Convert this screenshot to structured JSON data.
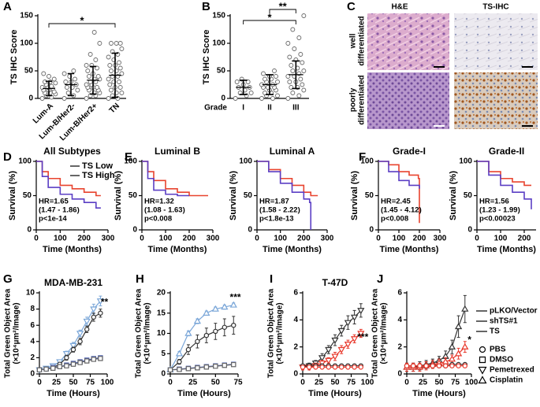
{
  "chart_data": [
    {
      "type": "dotplot",
      "panel": "A",
      "ylabel": "TS IHC Score",
      "categories": [
        "Lum-A",
        "Lum-B/Her2-",
        "Lum-B/Her2+",
        "TN"
      ],
      "points": [
        [
          0,
          2,
          5,
          8,
          10,
          10,
          12,
          15,
          15,
          18,
          20,
          20,
          22,
          25,
          28,
          30,
          30,
          35,
          40,
          45
        ],
        [
          0,
          5,
          10,
          15,
          20,
          20,
          25,
          30,
          30,
          35,
          40,
          45,
          50
        ],
        [
          0,
          5,
          5,
          10,
          10,
          15,
          15,
          20,
          20,
          20,
          25,
          25,
          30,
          30,
          35,
          35,
          40,
          40,
          45,
          50,
          55,
          60,
          60,
          70,
          80,
          100,
          120
        ],
        [
          0,
          0,
          5,
          10,
          10,
          15,
          20,
          20,
          25,
          30,
          30,
          35,
          40,
          40,
          45,
          50,
          50,
          55,
          60,
          60,
          65,
          70,
          75,
          80,
          85,
          90,
          100,
          100,
          100
        ]
      ],
      "mean": [
        18,
        25,
        33,
        42
      ],
      "sd": [
        13,
        20,
        25,
        40
      ],
      "annotations": [
        "*"
      ],
      "ylim": [
        0,
        150
      ],
      "yticks": [
        0,
        50,
        100,
        150
      ]
    },
    {
      "type": "dotplot",
      "panel": "B",
      "ylabel": "TS IHC Score",
      "xlabel": "Grade",
      "categories": [
        "I",
        "II",
        "III"
      ],
      "points": [
        [
          0,
          5,
          10,
          10,
          15,
          20,
          20,
          25,
          30,
          30,
          35
        ],
        [
          0,
          0,
          5,
          5,
          10,
          10,
          15,
          15,
          20,
          20,
          20,
          25,
          25,
          30,
          30,
          35,
          35,
          40,
          40,
          45,
          50
        ],
        [
          0,
          5,
          10,
          15,
          20,
          20,
          25,
          30,
          30,
          35,
          40,
          40,
          45,
          50,
          50,
          55,
          60,
          65,
          70,
          75,
          80,
          90,
          100,
          110,
          125,
          150
        ]
      ],
      "mean": [
        20,
        25,
        43
      ],
      "sd": [
        13,
        18,
        25
      ],
      "annotations": [
        "*",
        "**"
      ],
      "ylim": [
        0,
        150
      ],
      "yticks": [
        0,
        50,
        100,
        150
      ]
    },
    {
      "type": "survival",
      "panel": "D",
      "title": "All Subtypes",
      "ylabel": "Survival (%)",
      "xlabel": "Time (Months)",
      "series": [
        {
          "name": "TS Low",
          "color": "#e8432e",
          "x": [
            0,
            25,
            50,
            100,
            150,
            200,
            250,
            270
          ],
          "values": [
            100,
            85,
            75,
            65,
            60,
            55,
            50,
            50
          ]
        },
        {
          "name": "TS High",
          "color": "#5b3fc4",
          "x": [
            0,
            25,
            50,
            100,
            150,
            200,
            250,
            270
          ],
          "values": [
            100,
            78,
            62,
            52,
            45,
            40,
            32,
            32
          ]
        }
      ],
      "stats": [
        "HR=1.65",
        "(1.47 - 1.86)",
        "p<1e-14"
      ],
      "xlim": [
        0,
        300
      ],
      "xticks": [
        0,
        100,
        200,
        300
      ],
      "ylim": [
        0,
        100
      ],
      "yticks": [
        0,
        50,
        100
      ]
    },
    {
      "type": "survival",
      "panel": "E",
      "title": "Luminal B",
      "ylabel": "Survival (%)",
      "xlabel": "Time (Months)",
      "series": [
        {
          "color": "#e8432e",
          "x": [
            0,
            25,
            50,
            100,
            150,
            200,
            280
          ],
          "values": [
            100,
            85,
            72,
            60,
            55,
            50,
            50
          ]
        },
        {
          "color": "#5b3fc4",
          "x": [
            0,
            25,
            50,
            100,
            150,
            200
          ],
          "values": [
            100,
            75,
            58,
            52,
            50,
            50
          ]
        }
      ],
      "stats": [
        "HR=1.32",
        "(1.08 - 1.63)",
        "p<0.008"
      ],
      "xlim": [
        0,
        300
      ],
      "xticks": [
        0,
        100,
        200,
        300
      ],
      "ylim": [
        0,
        100
      ],
      "yticks": [
        0,
        50,
        100
      ]
    },
    {
      "type": "survival",
      "title": "Luminal A",
      "ylabel": "Survival (%)",
      "xlabel": "Time (Months)",
      "series": [
        {
          "color": "#e8432e",
          "x": [
            0,
            50,
            100,
            150,
            200,
            230,
            260
          ],
          "values": [
            100,
            88,
            75,
            65,
            55,
            50,
            50
          ]
        },
        {
          "color": "#5b3fc4",
          "x": [
            0,
            50,
            100,
            150,
            200,
            225,
            230
          ],
          "values": [
            100,
            85,
            68,
            55,
            45,
            40,
            0
          ]
        }
      ],
      "stats": [
        "HR=1.87",
        "(1.58 - 2.22)",
        "p<1.8e-13"
      ],
      "xlim": [
        0,
        300
      ],
      "xticks": [
        0,
        100,
        200,
        300
      ],
      "ylim": [
        0,
        100
      ],
      "yticks": [
        0,
        50,
        100
      ]
    },
    {
      "type": "survival",
      "panel": "F",
      "title": "Grade-I",
      "ylabel": "Survival (%)",
      "xlabel": "Time (Months)",
      "series": [
        {
          "color": "#e8432e",
          "x": [
            0,
            50,
            100,
            150,
            195,
            200
          ],
          "values": [
            100,
            95,
            85,
            80,
            75,
            10
          ]
        },
        {
          "color": "#5b3fc4",
          "x": [
            0,
            50,
            100,
            150,
            200
          ],
          "values": [
            100,
            85,
            72,
            65,
            60
          ]
        }
      ],
      "stats": [
        "HR=2.45",
        "(1.45 - 4.12)",
        "p<0.008"
      ],
      "xlim": [
        0,
        300
      ],
      "xticks": [
        0,
        100,
        200,
        300
      ],
      "ylim": [
        0,
        100
      ],
      "yticks": [
        0,
        50,
        100
      ]
    },
    {
      "type": "survival",
      "title": "Grade-II",
      "ylabel": "Survival (%)",
      "xlabel": "Time (Months)",
      "series": [
        {
          "color": "#e8432e",
          "x": [
            0,
            50,
            100,
            150,
            200,
            230
          ],
          "values": [
            100,
            85,
            75,
            70,
            65,
            65
          ]
        },
        {
          "color": "#5b3fc4",
          "x": [
            0,
            50,
            100,
            150,
            200,
            230
          ],
          "values": [
            100,
            80,
            65,
            55,
            45,
            30
          ]
        }
      ],
      "stats": [
        "HR=1.56",
        "(1.23 - 1.99)",
        "p<0.00023"
      ],
      "xlim": [
        0,
        250
      ],
      "xticks": [
        0,
        100,
        200
      ],
      "ylim": [
        0,
        100
      ],
      "yticks": [
        0,
        50,
        100
      ]
    },
    {
      "type": "growth",
      "panel": "G",
      "title": "MDA-MB-231",
      "ylabel": [
        "Total Green Object Area",
        "(×10⁴µm²/Image)"
      ],
      "xlabel": "Time (Hours)",
      "x": [
        0,
        10,
        20,
        30,
        40,
        50,
        60,
        70,
        80,
        90
      ],
      "series": [
        {
          "color": "#7aa6d8",
          "marker": "triangle-down",
          "values": [
            0.5,
            0.7,
            1,
            1.5,
            2.5,
            3.5,
            5,
            6.5,
            8,
            9
          ],
          "errors": [
            0.1,
            0.1,
            0.2,
            0.2,
            0.3,
            0.4,
            0.4,
            0.5,
            0.6,
            0.6
          ]
        },
        {
          "color": "#333333",
          "marker": "circle",
          "values": [
            0.5,
            0.6,
            0.8,
            1.2,
            2,
            3,
            4,
            5.5,
            7,
            7.5
          ],
          "errors": [
            0.1,
            0.1,
            0.1,
            0.2,
            0.3,
            0.3,
            0.4,
            0.4,
            0.5,
            0.5
          ]
        },
        {
          "color": "#4a5fb0",
          "marker": "square",
          "values": [
            0.5,
            0.6,
            0.8,
            0.9,
            1.1,
            1.3,
            1.5,
            1.7,
            1.9,
            2
          ]
        },
        {
          "color": "#666666",
          "marker": "square",
          "values": [
            0.5,
            0.6,
            0.7,
            0.9,
            1,
            1.2,
            1.4,
            1.6,
            1.8,
            1.9
          ]
        }
      ],
      "annotations": [
        "**"
      ],
      "xlim": [
        0,
        100
      ],
      "xticks": [
        0,
        25,
        50,
        75,
        100
      ],
      "ylim": [
        0,
        10
      ],
      "yticks": [
        0,
        2,
        4,
        6,
        8,
        10
      ]
    },
    {
      "type": "growth",
      "panel": "H",
      "ylabel": [
        "Total Green Object Area",
        "(×10⁴µm²/Image)"
      ],
      "xlabel": "Time (Hours)",
      "x": [
        0,
        10,
        20,
        30,
        40,
        50,
        60,
        70
      ],
      "series": [
        {
          "color": "#7aa6d8",
          "marker": "triangle-up",
          "values": [
            1,
            5,
            10,
            13,
            15,
            16,
            16.5,
            17
          ],
          "errors": [
            0.2,
            0.5,
            0.6,
            0.6,
            0.5,
            0.5,
            0.5,
            0.5
          ]
        },
        {
          "color": "#333333",
          "marker": "circle",
          "values": [
            1,
            3,
            6,
            8,
            9.5,
            10.5,
            11.5,
            12
          ],
          "errors": [
            0.2,
            0.6,
            1.2,
            1.6,
            1.8,
            2,
            2.1,
            2.2
          ]
        },
        {
          "color": "#4a5fb0",
          "marker": "square",
          "values": [
            1,
            1.2,
            1.4,
            1.6,
            1.8,
            2,
            2.2,
            2.4
          ]
        },
        {
          "color": "#666666",
          "marker": "square",
          "values": [
            1,
            1.1,
            1.3,
            1.5,
            1.7,
            1.9,
            2.1,
            2.3
          ]
        }
      ],
      "annotations": [
        "***"
      ],
      "xlim": [
        0,
        75
      ],
      "xticks": [
        0,
        25,
        50,
        75
      ],
      "ylim": [
        0,
        20
      ],
      "yticks": [
        0,
        5,
        10,
        15,
        20
      ]
    },
    {
      "type": "growth",
      "panel": "I",
      "title": "T-47D",
      "ylabel": [
        "Total Green Object Area",
        "(×10⁴µm²/Image)"
      ],
      "xlabel": "Time (Hours)",
      "x": [
        0,
        10,
        20,
        30,
        40,
        50,
        60,
        70,
        80,
        90
      ],
      "series": [
        {
          "color": "#333333",
          "marker": "triangle-down",
          "values": [
            0.5,
            0.6,
            0.8,
            1.2,
            1.8,
            2.5,
            3.2,
            3.8,
            4.2,
            4.7
          ],
          "errors": [
            0.2,
            0.2,
            0.2,
            0.3,
            0.3,
            0.4,
            0.4,
            0.5,
            0.5,
            0.5
          ]
        },
        {
          "color": "#e8382b",
          "marker": "triangle-down",
          "values": [
            0.5,
            0.5,
            0.6,
            0.8,
            1,
            1.3,
            1.8,
            2.2,
            2.6,
            3
          ],
          "errors": [
            0.2,
            0.2,
            0.2,
            0.2,
            0.2,
            0.3,
            0.3,
            0.3,
            0.3,
            0.3
          ]
        },
        {
          "color": "#333333",
          "marker": "circle",
          "values": [
            0.6,
            0.6,
            0.6,
            0.6,
            0.6,
            0.6,
            0.6,
            0.6,
            0.6,
            0.6
          ]
        },
        {
          "color": "#e8382b",
          "marker": "circle",
          "values": [
            0.5,
            0.5,
            0.5,
            0.5,
            0.5,
            0.5,
            0.5,
            0.5,
            0.5,
            0.5
          ]
        }
      ],
      "annotations": [
        "***"
      ],
      "xlim": [
        0,
        100
      ],
      "xticks": [
        0,
        25,
        50,
        75,
        100
      ],
      "ylim": [
        0,
        6
      ],
      "yticks": [
        0,
        2,
        4,
        6
      ]
    },
    {
      "type": "growth",
      "panel": "J",
      "ylabel": [
        "Total Green Object Area",
        "(×10⁴µm²/Image)"
      ],
      "xlabel": "Time (Hours)",
      "x": [
        0,
        10,
        20,
        30,
        40,
        50,
        60,
        70,
        80,
        90
      ],
      "series": [
        {
          "color": "#333333",
          "marker": "triangle-up",
          "values": [
            0.5,
            0.5,
            0.6,
            0.7,
            0.8,
            1,
            1.3,
            2,
            3.5,
            4.8
          ],
          "errors": [
            0.3,
            0.3,
            0.3,
            0.3,
            0.3,
            0.3,
            0.4,
            0.5,
            0.8,
            1
          ]
        },
        {
          "color": "#e8382b",
          "marker": "triangle-up",
          "values": [
            0.5,
            0.5,
            0.5,
            0.6,
            0.7,
            0.8,
            0.9,
            1.1,
            1.5,
            2
          ],
          "errors": [
            0.3,
            0.3,
            0.3,
            0.3,
            0.3,
            0.3,
            0.3,
            0.3,
            0.4,
            0.4
          ]
        },
        {
          "color": "#333333",
          "marker": "circle",
          "values": [
            0.6,
            0.6,
            0.6,
            0.6,
            0.6,
            0.6,
            0.6,
            0.7,
            0.7,
            0.7
          ]
        },
        {
          "color": "#e8382b",
          "marker": "circle",
          "values": [
            0.6,
            0.6,
            0.6,
            0.6,
            0.6,
            0.6,
            0.6,
            0.6,
            0.6,
            0.6
          ]
        }
      ],
      "annotations": [
        "*"
      ],
      "legend": {
        "lines": [
          {
            "label": "pLKO/Vector",
            "color": "#333333"
          },
          {
            "label": "shTS#1",
            "color": "#7aa6d8"
          },
          {
            "label": "TS",
            "color": "#e8382b"
          }
        ],
        "markers": [
          {
            "label": "PBS",
            "marker": "circle"
          },
          {
            "label": "DMSO",
            "marker": "square"
          },
          {
            "label": "Pemetrexed",
            "marker": "triangle-down"
          },
          {
            "label": "Cisplatin",
            "marker": "triangle-up"
          }
        ]
      },
      "xlim": [
        0,
        100
      ],
      "xticks": [
        0,
        25,
        50,
        75,
        100
      ],
      "ylim": [
        0,
        6
      ],
      "yticks": [
        0,
        2,
        4,
        6
      ]
    }
  ],
  "images": {
    "panel": "C",
    "columns": [
      "H&E",
      "TS-IHC"
    ],
    "rows": [
      [
        "well",
        "differentiated"
      ],
      [
        "poorly",
        "differentiated"
      ]
    ]
  }
}
